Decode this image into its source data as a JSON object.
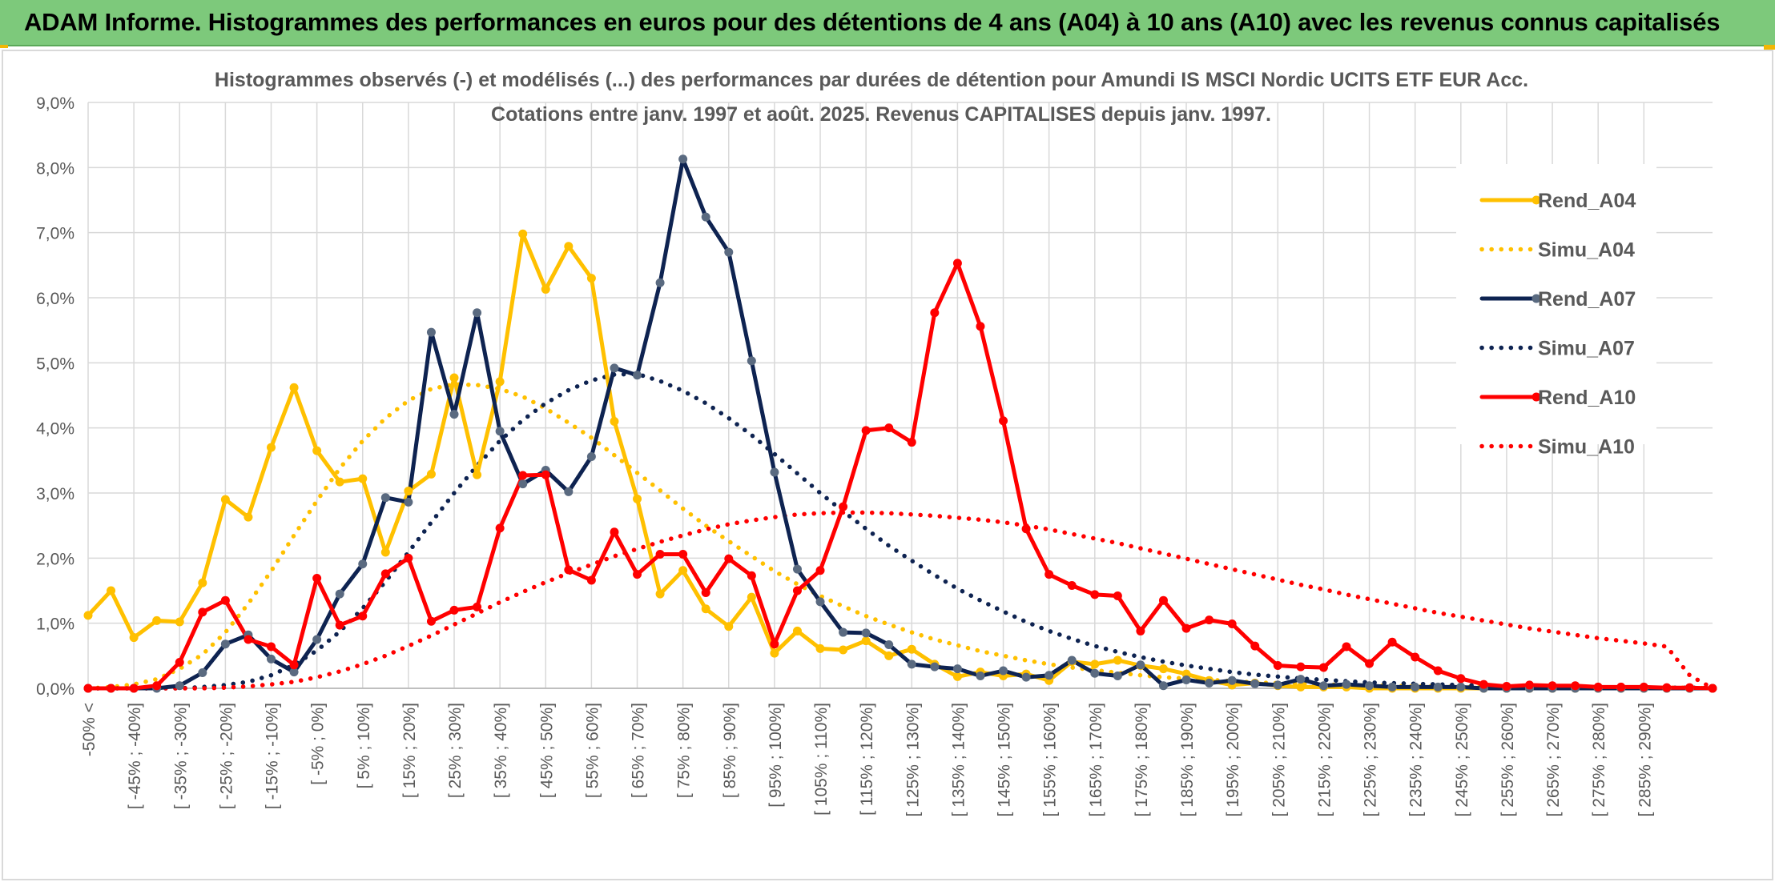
{
  "banner": {
    "title": "ADAM Informe. Histogrammes des performances en euros pour des détentions de 4 ans (A04) à 10 ans (A10) avec les revenus connus capitalisés"
  },
  "colors": {
    "banner": "#7dc97b",
    "A04": "#ffc000",
    "A07": "#0e2351",
    "A07_marker": "#5a6a80",
    "A10": "#ff0000",
    "grid": "#d9d9d9",
    "text": "#595959"
  },
  "chart_data": {
    "type": "line",
    "title": "Histogrammes observés (-) et modélisés (...) des performances par durées de détention pour Amundi IS MSCI Nordic UCITS ETF EUR Acc.",
    "subtitle": "Cotations entre janv. 1997 et août. 2025. Revenus CAPITALISES depuis janv. 1997.",
    "ylim": [
      0,
      9
    ],
    "yticks": [
      "0,0%",
      "1,0%",
      "2,0%",
      "3,0%",
      "4,0%",
      "5,0%",
      "6,0%",
      "7,0%",
      "8,0%",
      "9,0%"
    ],
    "grid": true,
    "legend_position": "right",
    "categories": [
      "-50% <",
      "[ -50% ; -45%]",
      "[ -45% ; -40%]",
      "[ -40% ; -35%]",
      "[ -35% ; -30%]",
      "[ -30% ; -25%]",
      "[ -25% ; -20%]",
      "[ -20% ; -15%]",
      "[ -15% ; -10%]",
      "[ -10% ; -5%]",
      "[ -5% ; 0%]",
      "[ 0% ; 5%]",
      "[ 5% ; 10%]",
      "[ 10% ; 15%]",
      "[ 15% ; 20%]",
      "[ 20% ; 25%]",
      "[ 25% ; 30%]",
      "[ 30% ; 35%]",
      "[ 35% ; 40%]",
      "[ 40% ; 45%]",
      "[ 45% ; 50%]",
      "[ 50% ; 55%]",
      "[ 55% ; 60%]",
      "[ 60% ; 65%]",
      "[ 65% ; 70%]",
      "[ 70% ; 75%]",
      "[ 75% ; 80%]",
      "[ 80% ; 85%]",
      "[ 85% ; 90%]",
      "[ 90% ; 95%]",
      "[ 95% ; 100%]",
      "[ 100% ; 105%]",
      "[ 105% ; 110%]",
      "[ 110% ; 115%]",
      "[ 115% ; 120%]",
      "[ 120% ; 125%]",
      "[ 125% ; 130%]",
      "[ 130% ; 135%]",
      "[ 135% ; 140%]",
      "[ 140% ; 145%]",
      "[ 145% ; 150%]",
      "[ 150% ; 155%]",
      "[ 155% ; 160%]",
      "[ 160% ; 165%]",
      "[ 165% ; 170%]",
      "[ 170% ; 175%]",
      "[ 175% ; 180%]",
      "[ 180% ; 185%]",
      "[ 185% ; 190%]",
      "[ 190% ; 195%]",
      "[ 195% ; 200%]",
      "[ 200% ; 205%]",
      "[ 205% ; 210%]",
      "[ 210% ; 215%]",
      "[ 215% ; 220%]",
      "[ 220% ; 225%]",
      "[ 225% ; 230%]",
      "[ 230% ; 235%]",
      "[ 235% ; 240%]",
      "[ 240% ; 245%]",
      "[ 245% ; 250%]",
      "[ 250% ; 255%]",
      "[ 255% ; 260%]",
      "[ 260% ; 265%]",
      "[ 265% ; 270%]",
      "[ 270% ; 275%]",
      "[ 275% ; 280%]",
      "[ 280% ; 285%]",
      "[ 285% ; 290%]",
      "[ 290% ; 295%]",
      "[ 295% ; 300%]",
      "[ 300% ; 305%]"
    ],
    "xtick_labels_shown": [
      "-50% <",
      "[ -45% ; -40%]",
      "[ -35% ; -30%]",
      "[ -25% ; -20%]",
      "[ -15% ; -10%]",
      "[ -5% ; 0%]",
      "[ 5% ; 10%]",
      "[ 15% ; 20%]",
      "[ 25% ; 30%]",
      "[ 35% ; 40%]",
      "[ 45% ; 50%]",
      "[ 55% ; 60%]",
      "[ 65% ; 70%]",
      "[ 75% ; 80%]",
      "[ 85% ; 90%]",
      "[ 95% ; 100%]",
      "[ 105% ; 110%]",
      "[ 115% ; 120%]",
      "[ 125% ; 130%]",
      "[ 135% ; 140%]",
      "[ 145% ; 150%]",
      "[ 155% ; 160%]",
      "[ 165% ; 170%]",
      "[ 175% ; 180%]",
      "[ 185% ; 190%]",
      "[ 195% ; 200%]",
      "[ 205% ; 210%]",
      "[ 215% ; 220%]",
      "[ 225% ; 230%]",
      "[ 235% ; 240%]",
      "[ 245% ; 250%]",
      "[ 255% ; 260%]",
      "[ 265% ; 270%]",
      "[ 275% ; 280%]",
      "[ 285% ; 290%]"
    ],
    "series": [
      {
        "name": "Rend_A04",
        "style": "solid",
        "marker": true,
        "color": "#ffc000",
        "values": [
          1.12,
          1.5,
          0.78,
          1.04,
          1.02,
          1.62,
          2.9,
          2.63,
          3.7,
          4.62,
          3.65,
          3.17,
          3.22,
          2.09,
          3.03,
          3.29,
          4.77,
          3.28,
          4.71,
          6.98,
          6.13,
          6.79,
          6.3,
          4.1,
          2.91,
          1.45,
          1.81,
          1.22,
          0.95,
          1.4,
          0.54,
          0.88,
          0.61,
          0.59,
          0.73,
          0.5,
          0.6,
          0.37,
          0.18,
          0.25,
          0.19,
          0.22,
          0.12,
          0.41,
          0.37,
          0.43,
          0.35,
          0.3,
          0.22,
          0.12,
          0.05,
          0.08,
          0.04,
          0.02,
          0.02,
          0.02,
          0.0,
          0.0,
          0.0,
          0.0,
          0.0,
          0.0,
          0.0,
          0.0,
          0.0,
          0.0,
          0.0,
          0.0,
          0.0,
          0.0,
          0.0,
          0.0
        ]
      },
      {
        "name": "Simu_A04",
        "style": "dotted",
        "marker": false,
        "color": "#ffc000",
        "values": [
          0.0,
          0.02,
          0.06,
          0.14,
          0.3,
          0.52,
          0.86,
          1.3,
          1.8,
          2.35,
          2.88,
          3.38,
          3.8,
          4.15,
          4.42,
          4.6,
          4.67,
          4.66,
          4.6,
          4.48,
          4.3,
          4.08,
          3.85,
          3.58,
          3.31,
          3.04,
          2.76,
          2.5,
          2.26,
          2.03,
          1.8,
          1.6,
          1.42,
          1.26,
          1.11,
          0.98,
          0.86,
          0.75,
          0.66,
          0.57,
          0.5,
          0.43,
          0.37,
          0.32,
          0.28,
          0.24,
          0.2,
          0.17,
          0.15,
          0.13,
          0.11,
          0.09,
          0.08,
          0.07,
          0.06,
          0.05,
          0.04,
          0.04,
          0.03,
          0.03,
          0.02,
          0.02,
          0.02,
          0.02,
          0.01,
          0.01,
          0.01,
          0.01,
          0.01,
          0.01,
          0.01,
          0.0
        ]
      },
      {
        "name": "Rend_A07",
        "style": "solid",
        "marker": true,
        "color": "#0e2351",
        "values": [
          0.0,
          0.0,
          0.0,
          0.0,
          0.04,
          0.24,
          0.68,
          0.82,
          0.45,
          0.25,
          0.75,
          1.45,
          1.91,
          2.93,
          2.86,
          5.47,
          4.21,
          5.77,
          3.95,
          3.14,
          3.35,
          3.02,
          3.56,
          4.92,
          4.81,
          6.23,
          8.13,
          7.24,
          6.7,
          5.03,
          3.32,
          1.83,
          1.33,
          0.86,
          0.85,
          0.67,
          0.37,
          0.33,
          0.3,
          0.19,
          0.27,
          0.17,
          0.2,
          0.43,
          0.23,
          0.19,
          0.36,
          0.04,
          0.13,
          0.08,
          0.12,
          0.07,
          0.05,
          0.14,
          0.04,
          0.06,
          0.04,
          0.02,
          0.02,
          0.02,
          0.02,
          0.0,
          0.0,
          0.0,
          0.0,
          0.0,
          0.0,
          0.0,
          0.0,
          0.0,
          0.0,
          0.0
        ]
      },
      {
        "name": "Simu_A07",
        "style": "dotted",
        "marker": false,
        "color": "#0e2351",
        "values": [
          0.0,
          0.0,
          0.0,
          0.0,
          0.0,
          0.02,
          0.05,
          0.1,
          0.2,
          0.36,
          0.58,
          0.87,
          1.23,
          1.64,
          2.09,
          2.55,
          3.0,
          3.42,
          3.8,
          4.12,
          4.38,
          4.58,
          4.73,
          4.82,
          4.83,
          4.72,
          4.57,
          4.38,
          4.15,
          3.89,
          3.6,
          3.3,
          3.0,
          2.72,
          2.45,
          2.19,
          1.96,
          1.74,
          1.53,
          1.35,
          1.18,
          1.02,
          0.88,
          0.76,
          0.65,
          0.56,
          0.48,
          0.41,
          0.35,
          0.3,
          0.25,
          0.21,
          0.18,
          0.15,
          0.13,
          0.11,
          0.09,
          0.08,
          0.07,
          0.06,
          0.05,
          0.04,
          0.03,
          0.03,
          0.02,
          0.02,
          0.02,
          0.01,
          0.01,
          0.01,
          0.01,
          0.0
        ]
      },
      {
        "name": "Rend_A10",
        "style": "solid",
        "marker": true,
        "color": "#ff0000",
        "values": [
          0.0,
          0.0,
          0.0,
          0.04,
          0.4,
          1.17,
          1.35,
          0.75,
          0.64,
          0.36,
          1.69,
          0.97,
          1.11,
          1.76,
          2.0,
          1.03,
          1.2,
          1.25,
          2.46,
          3.27,
          3.28,
          1.82,
          1.66,
          2.4,
          1.75,
          2.06,
          2.06,
          1.47,
          1.99,
          1.73,
          0.68,
          1.5,
          1.81,
          2.79,
          3.96,
          4.0,
          3.78,
          5.77,
          6.53,
          5.56,
          4.11,
          2.45,
          1.75,
          1.58,
          1.44,
          1.42,
          0.88,
          1.35,
          0.92,
          1.05,
          0.99,
          0.65,
          0.35,
          0.33,
          0.32,
          0.64,
          0.38,
          0.71,
          0.48,
          0.27,
          0.15,
          0.06,
          0.03,
          0.05,
          0.04,
          0.04,
          0.02,
          0.02,
          0.02,
          0.01,
          0.01,
          0.0
        ]
      },
      {
        "name": "Simu_A10",
        "style": "dotted",
        "marker": false,
        "color": "#ff0000",
        "values": [
          0.0,
          0.0,
          0.0,
          0.0,
          0.0,
          0.0,
          0.01,
          0.03,
          0.06,
          0.1,
          0.17,
          0.26,
          0.37,
          0.5,
          0.65,
          0.81,
          0.98,
          1.15,
          1.32,
          1.48,
          1.63,
          1.77,
          1.9,
          2.03,
          2.14,
          2.25,
          2.35,
          2.44,
          2.52,
          2.58,
          2.63,
          2.67,
          2.69,
          2.7,
          2.7,
          2.69,
          2.67,
          2.65,
          2.62,
          2.59,
          2.55,
          2.5,
          2.44,
          2.37,
          2.3,
          2.23,
          2.15,
          2.07,
          1.99,
          1.91,
          1.83,
          1.75,
          1.67,
          1.59,
          1.52,
          1.44,
          1.37,
          1.3,
          1.23,
          1.16,
          1.1,
          1.04,
          0.98,
          0.92,
          0.87,
          0.82,
          0.77,
          0.73,
          0.69,
          0.64,
          0.2,
          0.0
        ]
      }
    ]
  }
}
